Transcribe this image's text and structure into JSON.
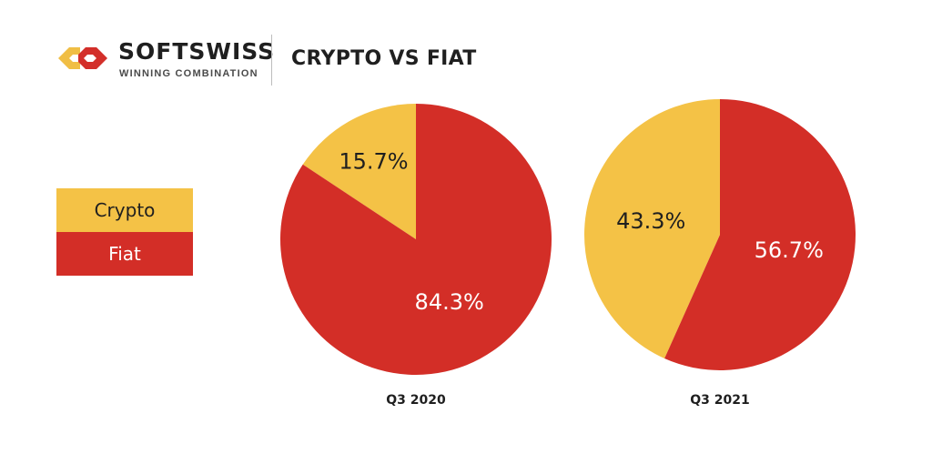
{
  "brand": {
    "name": "SOFTSWISS",
    "tagline": "WINNING COMBINATION",
    "logo_colors": [
      "#F0BE45",
      "#D32F2A"
    ]
  },
  "title": "CRYPTO VS FIAT",
  "colors": {
    "crypto": "#F4C246",
    "fiat": "#D32E27",
    "dark_text": "#1f1f1f",
    "light_text": "#ffffff"
  },
  "legend": [
    {
      "name": "Crypto",
      "color": "#F4C246"
    },
    {
      "name": "Fiat",
      "color": "#D32E27"
    }
  ],
  "chart_data": [
    {
      "type": "pie",
      "label": "Q3 2020",
      "slices": [
        {
          "name": "Crypto",
          "value": 15.7,
          "label": "15.7%"
        },
        {
          "name": "Fiat",
          "value": 84.3,
          "label": "84.3%"
        }
      ]
    },
    {
      "type": "pie",
      "label": "Q3 2021",
      "slices": [
        {
          "name": "Crypto",
          "value": 43.3,
          "label": "43.3%"
        },
        {
          "name": "Fiat",
          "value": 56.7,
          "label": "56.7%"
        }
      ]
    }
  ]
}
